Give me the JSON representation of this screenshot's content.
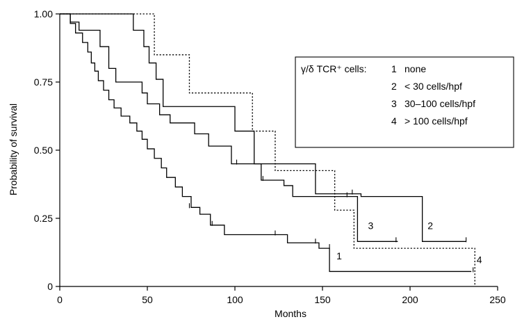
{
  "chart_data": {
    "type": "line",
    "subtype": "kaplan-meier step curves",
    "title": "",
    "xlabel": "Months",
    "ylabel": "Probability of survival",
    "xlim": [
      0,
      250
    ],
    "ylim": [
      0,
      1.0
    ],
    "x_ticks": [
      "0",
      "50",
      "100",
      "150",
      "200",
      "250"
    ],
    "y_ticks": [
      "0",
      "0.25",
      "0.50",
      "0.75",
      "1.00"
    ],
    "grid": false,
    "legend": {
      "placement": "right",
      "title": "γ/δ TCR⁺ cells:",
      "entries": [
        {
          "key": "1",
          "text": "none"
        },
        {
          "key": "2",
          "text": "< 30 cells/hpf"
        },
        {
          "key": "3",
          "text": "30–100 cells/hpf"
        },
        {
          "key": "4",
          "text": "> 100 cells/hpf"
        }
      ]
    },
    "series": [
      {
        "label": "1",
        "dash": "solid",
        "steps": [
          [
            0,
            1.0
          ],
          [
            6,
            0.965
          ],
          [
            9,
            0.93
          ],
          [
            13,
            0.895
          ],
          [
            16,
            0.86
          ],
          [
            18,
            0.82
          ],
          [
            20,
            0.79
          ],
          [
            22,
            0.755
          ],
          [
            25,
            0.72
          ],
          [
            28,
            0.685
          ],
          [
            31,
            0.655
          ],
          [
            35,
            0.625
          ],
          [
            40,
            0.6
          ],
          [
            44,
            0.57
          ],
          [
            47,
            0.54
          ],
          [
            50,
            0.505
          ],
          [
            54,
            0.47
          ],
          [
            58,
            0.435
          ],
          [
            61,
            0.4
          ],
          [
            66,
            0.365
          ],
          [
            70,
            0.33
          ],
          [
            75,
            0.29
          ],
          [
            80,
            0.265
          ],
          [
            86,
            0.225
          ],
          [
            94,
            0.19
          ],
          [
            108,
            0.19
          ],
          [
            130,
            0.16
          ],
          [
            145,
            0.16
          ],
          [
            148,
            0.14
          ],
          [
            154,
            0.055
          ],
          [
            235,
            0.055
          ]
        ],
        "censored": [
          [
            74,
            0.29
          ],
          [
            87,
            0.225
          ],
          [
            123,
            0.19
          ],
          [
            146,
            0.16
          ],
          [
            154,
            0.14
          ],
          [
            236,
            0.055
          ]
        ],
        "end_label": "1",
        "end_label_pos": [
          158,
          0.1
        ]
      },
      {
        "label": "2",
        "dash": "solid",
        "steps": [
          [
            0,
            1.0
          ],
          [
            40,
            1.0
          ],
          [
            42,
            0.94
          ],
          [
            48,
            0.88
          ],
          [
            51,
            0.82
          ],
          [
            55,
            0.76
          ],
          [
            59,
            0.66
          ],
          [
            97,
            0.66
          ],
          [
            100,
            0.57
          ],
          [
            109,
            0.57
          ],
          [
            111,
            0.45
          ],
          [
            135,
            0.45
          ],
          [
            146,
            0.34
          ],
          [
            167,
            0.34
          ],
          [
            172,
            0.33
          ],
          [
            207,
            0.33
          ],
          [
            207,
            0.165
          ],
          [
            232,
            0.165
          ]
        ],
        "censored": [
          [
            167,
            0.34
          ],
          [
            232,
            0.165
          ]
        ],
        "end_label": "2",
        "end_label_pos": [
          210,
          0.21
        ]
      },
      {
        "label": "3",
        "dash": "solid",
        "steps": [
          [
            0,
            1.0
          ],
          [
            6,
            0.97
          ],
          [
            11,
            0.94
          ],
          [
            23,
            0.88
          ],
          [
            28,
            0.8
          ],
          [
            32,
            0.75
          ],
          [
            47,
            0.71
          ],
          [
            50,
            0.67
          ],
          [
            57,
            0.63
          ],
          [
            63,
            0.6
          ],
          [
            77,
            0.56
          ],
          [
            85,
            0.515
          ],
          [
            98,
            0.45
          ],
          [
            115,
            0.39
          ],
          [
            128,
            0.37
          ],
          [
            133,
            0.33
          ],
          [
            168,
            0.33
          ],
          [
            170,
            0.165
          ],
          [
            193,
            0.165
          ]
        ],
        "censored": [
          [
            101,
            0.45
          ],
          [
            116,
            0.39
          ],
          [
            164,
            0.33
          ],
          [
            192,
            0.165
          ]
        ],
        "end_label": "3",
        "end_label_pos": [
          176,
          0.21
        ]
      },
      {
        "label": "4",
        "dash": "dotted",
        "steps": [
          [
            0,
            1.0
          ],
          [
            52,
            1.0
          ],
          [
            54,
            0.85
          ],
          [
            73,
            0.85
          ],
          [
            74,
            0.71
          ],
          [
            109,
            0.71
          ],
          [
            110,
            0.57
          ],
          [
            122,
            0.57
          ],
          [
            123,
            0.425
          ],
          [
            155,
            0.425
          ],
          [
            157,
            0.28
          ],
          [
            165,
            0.28
          ],
          [
            168,
            0.14
          ],
          [
            236,
            0.14
          ],
          [
            237,
            0.0
          ]
        ],
        "censored": [],
        "end_label": "4",
        "end_label_pos": [
          238,
          0.085
        ]
      }
    ]
  }
}
